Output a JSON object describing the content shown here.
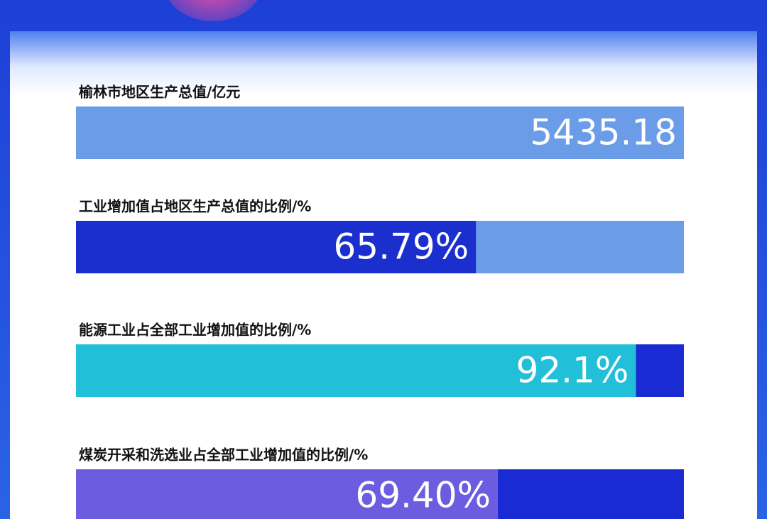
{
  "chart_data": [
    {
      "type": "bar",
      "title": "榆林市地区生产总值/亿元",
      "values": [
        5435.18
      ],
      "color": "#6b9ce8"
    },
    {
      "type": "bar",
      "title": "工业增加值占地区生产总值的比例/%",
      "values": [
        65.79
      ],
      "value_labels": [
        "65.79%"
      ],
      "color": "#1b2fcf",
      "track_color": "#6b9ce8",
      "xlim": [
        0,
        100
      ]
    },
    {
      "type": "bar",
      "title": "能源工业占全部工业增加值的比例/%",
      "values": [
        92.1
      ],
      "value_labels": [
        "92.1%"
      ],
      "color": "#22c0d8",
      "track_color": "#1a2bd4",
      "xlim": [
        0,
        100
      ]
    },
    {
      "type": "bar",
      "title": "煤炭开采和洗选业占全部工业增加值的比例/%",
      "values": [
        69.4
      ],
      "value_labels": [
        "69.40%"
      ],
      "color": "#6c5ce0",
      "track_color": "#1a2bd4",
      "xlim": [
        0,
        100
      ]
    }
  ]
}
